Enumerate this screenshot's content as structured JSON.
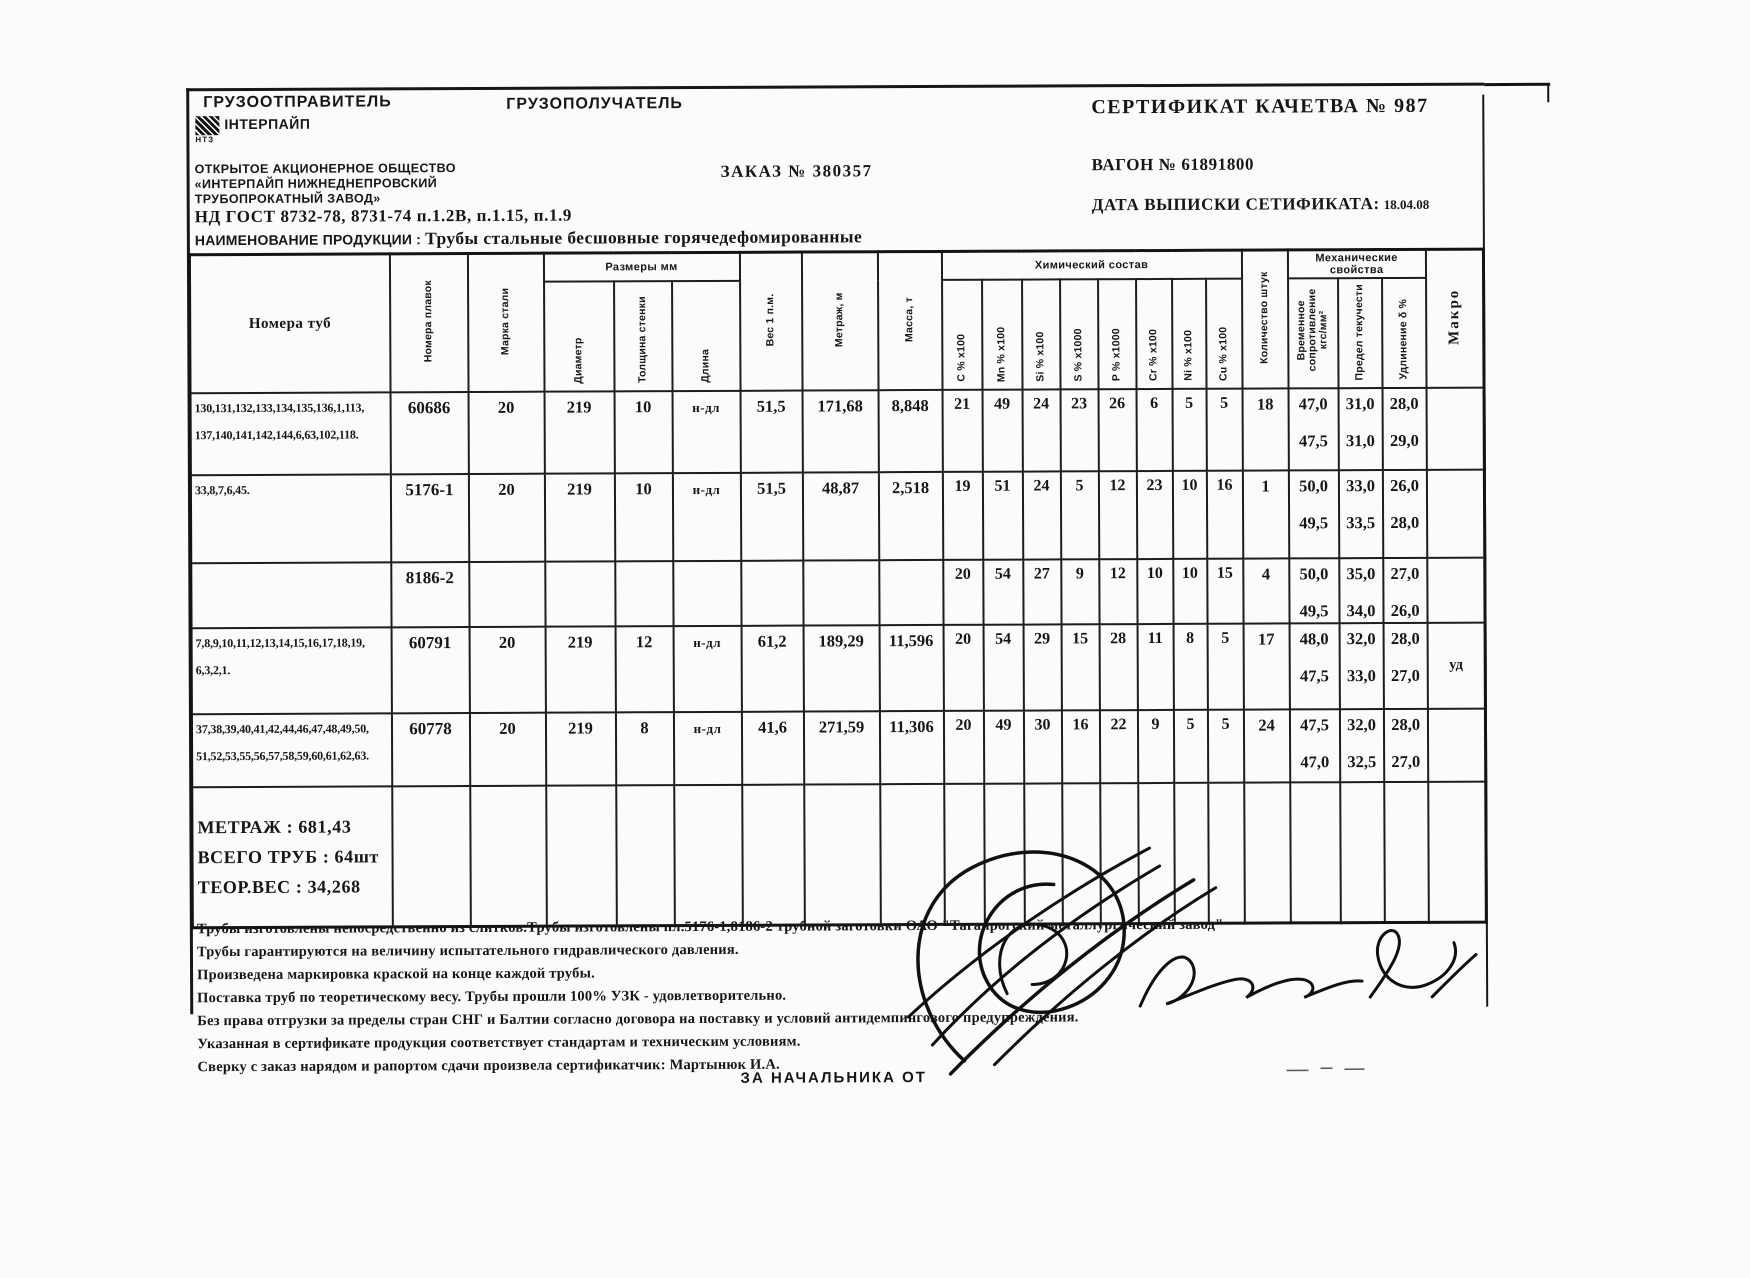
{
  "certificate": {
    "shipper_label": "ГРУЗООТПРАВИТЕЛЬ",
    "consignee_label": "ГРУЗОПОЛУЧАТЕЛЬ",
    "title": "СЕРТИФИКАТ КАЧЕТВА №  987",
    "logo": {
      "brand": "ІНТЕРПАЙП",
      "sub": "НТЗ"
    },
    "company": [
      "ОТКРЫТОЕ АКЦИОНЕРНОЕ ОБЩЕСТВО",
      "«ИНТЕРПАЙП НИЖНЕДНЕПРОВСКИЙ",
      "ТРУБОПРОКАТНЫЙ ЗАВОД»"
    ],
    "nd_line": "НД   ГОСТ 8732-78, 8731-74 п.1.2В, п.1.15, п.1.9",
    "order": "ЗАКАЗ №  380357",
    "wagon": "ВАГОН №   61891800",
    "issue_date_label": "ДАТА ВЫПИСКИ СЕТИФИКАТА:",
    "issue_date": "18.04.08",
    "product_label": "НАИМЕНОВАНИЕ ПРОДУКЦИИ :",
    "product": "Трубы стальные бесшовные горячедефомированные"
  },
  "table": {
    "headers": {
      "col_tubes": "Номера туб",
      "col_heats": "Номера плавок",
      "col_grade": "Марка стали",
      "group_dimensions": "Размеры мм",
      "col_diameter": "Диаметр",
      "col_wall": "Толщина стенки",
      "col_length": "Длина",
      "col_weight_per_m": "Вес 1 п.м.",
      "col_metrage": "Метраж, м",
      "col_mass": "Масса, т",
      "group_chemical": "Химический состав",
      "chem_cols": [
        "C % x100",
        "Mn % x100",
        "Si % x100",
        "S % x1000",
        "P % x1000",
        "Cr % x100",
        "Ni % x100",
        "Cu % x100"
      ],
      "col_qty": "Количество штук",
      "group_mech": "Механические свойства",
      "mech_cols": [
        "Временное сопротивление кгс/мм²",
        "Предел текучести",
        "Удлинение δ %"
      ],
      "col_macro": "Макро"
    },
    "rows": [
      {
        "tubes": [
          "130,131,132,133,134,135,136,1,113,",
          "137,140,141,142,144,6,63,102,118."
        ],
        "heat": "60686",
        "grade": "20",
        "dia": "219",
        "wall": "10",
        "len": "н-дл",
        "w": "51,5",
        "metr": "171,68",
        "mass": "8,848",
        "chem": [
          "21",
          "49",
          "24",
          "23",
          "26",
          "6",
          "5",
          "5"
        ],
        "qty": "18",
        "mech": [
          [
            "47,0",
            "31,0",
            "28,0"
          ],
          [
            "47,5",
            "31,0",
            "29,0"
          ]
        ],
        "macro": ""
      },
      {
        "tubes": [
          "33,8,7,6,45."
        ],
        "heat": "5176-1",
        "grade": "20",
        "dia": "219",
        "wall": "10",
        "len": "н-дл",
        "w": "51,5",
        "metr": "48,87",
        "mass": "2,518",
        "chem": [
          "19",
          "51",
          "24",
          "5",
          "12",
          "23",
          "10",
          "16"
        ],
        "qty": "1",
        "mech": [
          [
            "50,0",
            "33,0",
            "26,0"
          ],
          [
            "49,5",
            "33,5",
            "28,0"
          ]
        ],
        "macro": ""
      },
      {
        "tubes": [],
        "heat": "8186-2",
        "grade": "",
        "dia": "",
        "wall": "",
        "len": "",
        "w": "",
        "metr": "",
        "mass": "",
        "chem": [
          "20",
          "54",
          "27",
          "9",
          "12",
          "10",
          "10",
          "15"
        ],
        "qty": "4",
        "mech": [
          [
            "50,0",
            "35,0",
            "27,0"
          ],
          [
            "49,5",
            "34,0",
            "26,0"
          ]
        ],
        "macro": ""
      },
      {
        "tubes": [
          "7,8,9,10,11,12,13,14,15,16,17,18,19,",
          "6,3,2,1."
        ],
        "heat": "60791",
        "grade": "20",
        "dia": "219",
        "wall": "12",
        "len": "н-дл",
        "w": "61,2",
        "metr": "189,29",
        "mass": "11,596",
        "chem": [
          "20",
          "54",
          "29",
          "15",
          "28",
          "11",
          "8",
          "5"
        ],
        "qty": "17",
        "mech": [
          [
            "48,0",
            "32,0",
            "28,0"
          ],
          [
            "47,5",
            "33,0",
            "27,0"
          ]
        ],
        "macro": "уд"
      },
      {
        "tubes": [
          "37,38,39,40,41,42,44,46,47,48,49,50,",
          "51,52,53,55,56,57,58,59,60,61,62,63."
        ],
        "heat": "60778",
        "grade": "20",
        "dia": "219",
        "wall": "8",
        "len": "н-дл",
        "w": "41,6",
        "metr": "271,59",
        "mass": "11,306",
        "chem": [
          "20",
          "49",
          "30",
          "16",
          "22",
          "9",
          "5",
          "5"
        ],
        "qty": "24",
        "mech": [
          [
            "47,5",
            "32,0",
            "28,0"
          ],
          [
            "47,0",
            "32,5",
            "27,0"
          ]
        ],
        "macro": ""
      }
    ],
    "summary": [
      "МЕТРАЖ : 681,43",
      "ВСЕГО ТРУБ : 64шт",
      "ТЕОР.ВЕС : 34,268"
    ]
  },
  "notes": [
    "Трубы изготовлены непосредственно из слитков.Трубы изготовлены  пл.5176-1,8186-2 трубной заготовки ОАО \"Таганрогский металлургический завод\"",
    "Трубы гарантируются на величину испытательного гидравлического давления.",
    "Произведена  маркировка краской на конце каждой трубы.",
    "Поставка труб по теоретическому весу. Трубы прошли 100% УЗК - удовлетворительно.",
    "Без права отгрузки за пределы стран СНГ и Балтии согласно договора на поставку и условий антидемпингового предупреждения.",
    "Указанная в сертификате продукция соответствует стандартам и техническим условиям.",
    "Сверку с заказ нарядом и рапортом сдачи произвела сертификатчик: Мартынюк И.А."
  ],
  "signature_line": "ЗА  НАЧАЛЬНИКА  ОТ"
}
